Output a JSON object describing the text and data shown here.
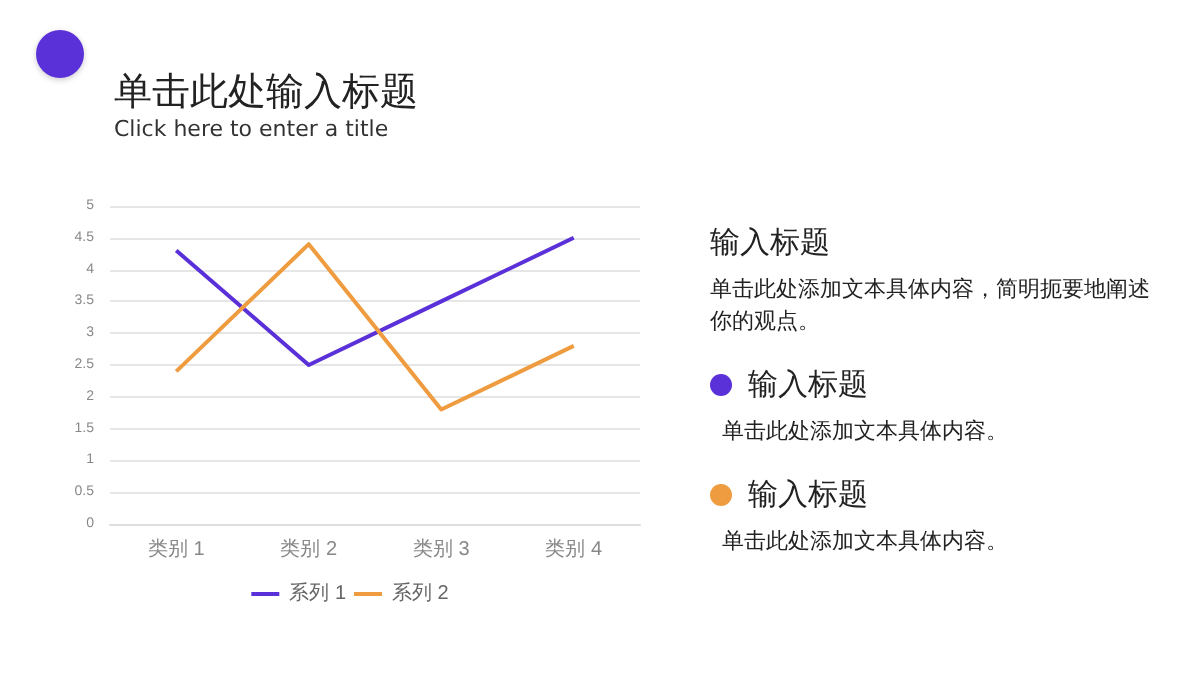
{
  "chart_data": {
    "type": "line",
    "title": "单击此处输入标题",
    "subtitle": "Click here to enter a title",
    "categories": [
      "类别 1",
      "类别 2",
      "类别 3",
      "类别 4"
    ],
    "series": [
      {
        "name": "系列 1",
        "color": "#5a30d8",
        "values": [
          4.3,
          2.5,
          3.5,
          4.5
        ]
      },
      {
        "name": "系列 2",
        "color": "#ee9c3f",
        "values": [
          2.4,
          4.4,
          1.8,
          2.8
        ]
      }
    ],
    "ylim": [
      0,
      5
    ],
    "yticks": [
      0,
      0.5,
      1,
      1.5,
      2,
      2.5,
      3,
      3.5,
      4,
      4.5,
      5
    ],
    "grid": "y",
    "legend": "bottom",
    "marker": "none",
    "annotations": [
      "输入标题",
      "单击此处添加文本具体内容，简明扼要地阐述你的观点。",
      "输入标题",
      "单击此处添加文本具体内容。",
      "输入标题",
      "单击此处添加文本具体内容。"
    ]
  }
}
